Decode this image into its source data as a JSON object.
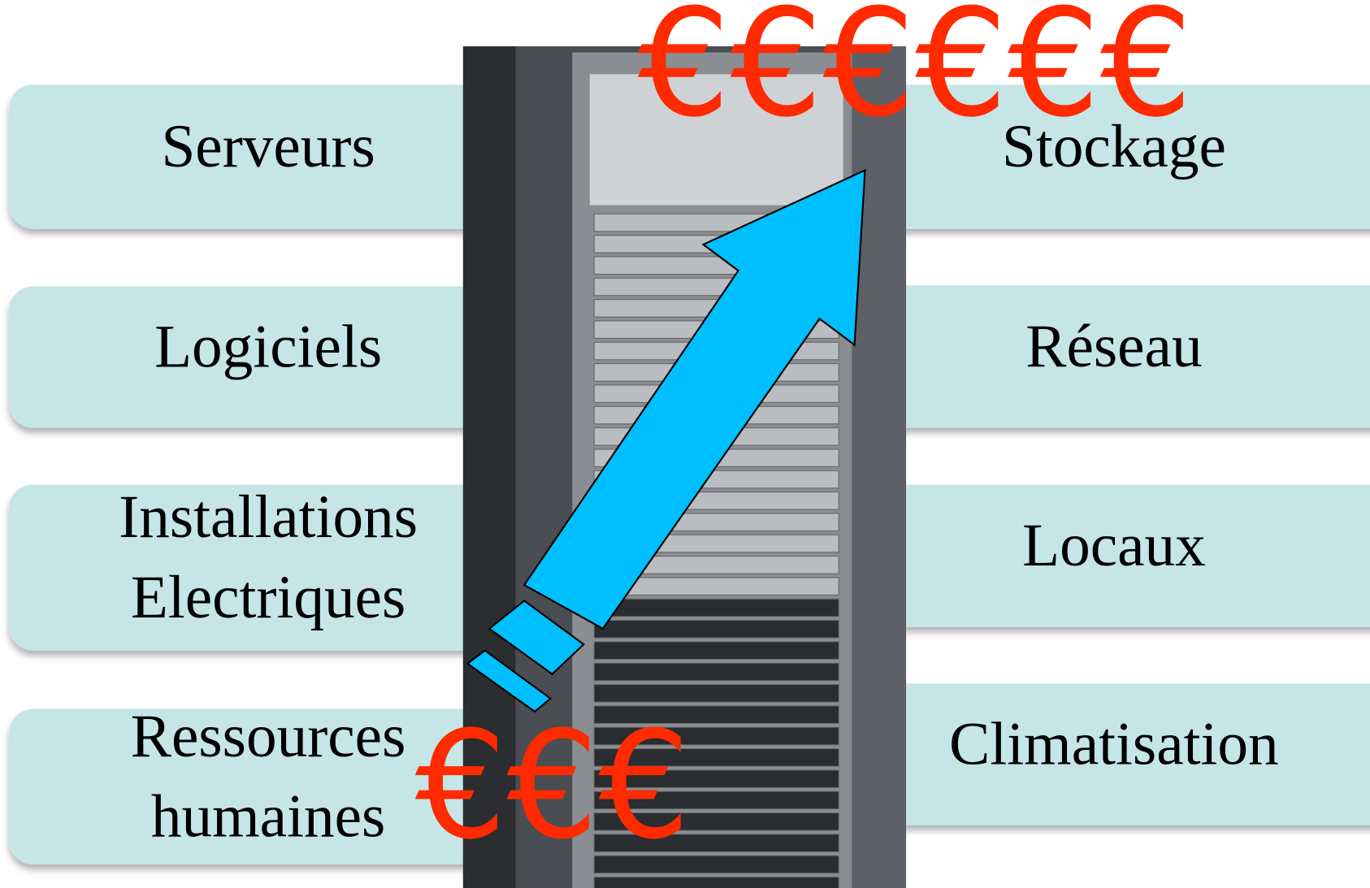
{
  "left_items": [
    [
      "Serveurs"
    ],
    [
      "Logiciels"
    ],
    [
      "Installations",
      "Electriques"
    ],
    [
      "Ressources",
      "humaines"
    ]
  ],
  "right_items": [
    [
      "Stockage"
    ],
    [
      "Réseau"
    ],
    [
      "Locaux"
    ],
    [
      "Climatisation"
    ]
  ],
  "euro_high": "€€€€€€",
  "euro_low": "€€€"
}
